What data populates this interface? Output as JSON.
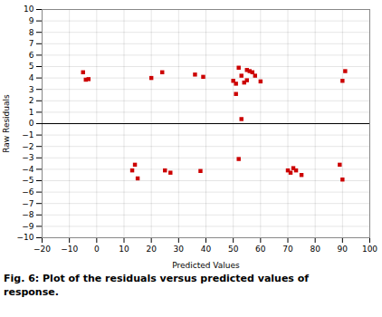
{
  "chart_data": {
    "type": "scatter",
    "caption": [
      "Fig. 6:  Plot of the residuals versus predicted values of",
      "response."
    ],
    "xlabel": "Predicted Values",
    "ylabel": "Raw Residuals",
    "x": [
      -5,
      -3,
      -4,
      13,
      15,
      20,
      24,
      27,
      36,
      39,
      50,
      51,
      51,
      52,
      52,
      53,
      53,
      54,
      55,
      55,
      56,
      57,
      58,
      60,
      70,
      72,
      73,
      75,
      89,
      90,
      91,
      14,
      25,
      38,
      71,
      90
    ],
    "values": [
      4.5,
      3.9,
      3.85,
      -4.1,
      -4.8,
      4.0,
      4.5,
      -4.3,
      4.3,
      4.1,
      3.75,
      2.6,
      3.5,
      -3.1,
      4.9,
      0.4,
      4.2,
      3.6,
      4.7,
      3.8,
      4.6,
      4.5,
      4.2,
      3.7,
      -4.1,
      -3.9,
      -4.1,
      -4.5,
      -3.6,
      -4.9,
      4.6,
      -3.6,
      -4.1,
      -4.15,
      -4.3,
      3.75
    ],
    "color": "#cc0000",
    "marker": "square",
    "xlim": [
      -20,
      100
    ],
    "ylim": [
      -10,
      10
    ],
    "xticks": [
      -20,
      -10,
      0,
      10,
      20,
      30,
      40,
      50,
      60,
      70,
      80,
      90,
      100
    ],
    "yticks": [
      -10,
      -9,
      -8,
      -7,
      -6,
      -5,
      -4,
      -3,
      -2,
      -1,
      0,
      1,
      2,
      3,
      4,
      5,
      6,
      7,
      8,
      9,
      10
    ],
    "grid": true
  }
}
